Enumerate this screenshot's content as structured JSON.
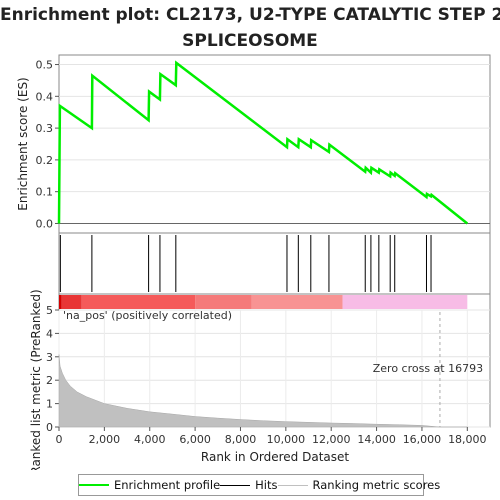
{
  "title_lines": [
    "Enrichment plot: CL2173, U2-TYPE CATALYTIC STEP 2",
    "SPLICEOSOME"
  ],
  "colors": {
    "es_line": "#00ee00",
    "hits": "#000000",
    "ranking": "#c0c0c0",
    "pos_label": "#e04040",
    "zero_line": "#aaaaaa"
  },
  "chart_data": [
    {
      "type": "line",
      "name": "enrichment_profile",
      "ylabel": "Enrichment score (ES)",
      "ylim": [
        -0.03,
        0.53
      ],
      "yticks": [
        0.0,
        0.1,
        0.2,
        0.3,
        0.4,
        0.5
      ],
      "xlim": [
        0,
        19000
      ],
      "points": [
        [
          0,
          0.0
        ],
        [
          40,
          0.37
        ],
        [
          1450,
          0.3
        ],
        [
          1470,
          0.465
        ],
        [
          3950,
          0.325
        ],
        [
          3970,
          0.415
        ],
        [
          4450,
          0.39
        ],
        [
          4470,
          0.47
        ],
        [
          5150,
          0.435
        ],
        [
          5170,
          0.505
        ],
        [
          10050,
          0.24
        ],
        [
          10070,
          0.265
        ],
        [
          10550,
          0.24
        ],
        [
          10570,
          0.265
        ],
        [
          11100,
          0.24
        ],
        [
          11120,
          0.262
        ],
        [
          11900,
          0.225
        ],
        [
          11920,
          0.248
        ],
        [
          13500,
          0.163
        ],
        [
          13520,
          0.175
        ],
        [
          13750,
          0.16
        ],
        [
          13770,
          0.175
        ],
        [
          14100,
          0.16
        ],
        [
          14120,
          0.17
        ],
        [
          14600,
          0.148
        ],
        [
          14620,
          0.16
        ],
        [
          14800,
          0.15
        ],
        [
          14820,
          0.158
        ],
        [
          16200,
          0.083
        ],
        [
          16220,
          0.093
        ],
        [
          16400,
          0.085
        ],
        [
          16420,
          0.09
        ],
        [
          18000,
          0.0
        ]
      ]
    },
    {
      "type": "hits",
      "name": "hits",
      "positions": [
        60,
        1450,
        3950,
        4450,
        5150,
        10050,
        10550,
        11100,
        11900,
        13500,
        13750,
        14100,
        14600,
        14800,
        16200,
        16400
      ]
    },
    {
      "type": "area",
      "name": "ranking_metric",
      "xlabel": "Rank in Ordered Dataset",
      "ylabel": "Ranked list metric (PreRanked)",
      "ylim": [
        0,
        5
      ],
      "yticks": [
        0,
        1,
        2,
        3,
        4,
        5
      ],
      "xticks": [
        0,
        2000,
        4000,
        6000,
        8000,
        10000,
        12000,
        14000,
        16000,
        18000
      ],
      "xtick_labels": [
        "0",
        "2,000",
        "4,000",
        "6,000",
        "8,000",
        "10,000",
        "12,000",
        "14,000",
        "16,000",
        "18,000"
      ],
      "points": [
        [
          0,
          3.1
        ],
        [
          50,
          2.6
        ],
        [
          150,
          2.3
        ],
        [
          300,
          2.0
        ],
        [
          500,
          1.75
        ],
        [
          800,
          1.5
        ],
        [
          1200,
          1.3
        ],
        [
          1600,
          1.15
        ],
        [
          2000,
          1.0
        ],
        [
          3000,
          0.8
        ],
        [
          4000,
          0.65
        ],
        [
          5000,
          0.55
        ],
        [
          6000,
          0.45
        ],
        [
          7000,
          0.38
        ],
        [
          8000,
          0.32
        ],
        [
          9000,
          0.27
        ],
        [
          10000,
          0.23
        ],
        [
          11000,
          0.2
        ],
        [
          12000,
          0.17
        ],
        [
          13000,
          0.15
        ],
        [
          14000,
          0.12
        ],
        [
          15000,
          0.1
        ],
        [
          16000,
          0.07
        ],
        [
          16793,
          0.0
        ],
        [
          18000,
          0.0
        ]
      ],
      "zero_cross": 16793,
      "annotation": "Zero cross at 16793",
      "pos_label": "'na_pos' (positively correlated)"
    },
    {
      "type": "heatmap",
      "name": "rank_color_bar",
      "segments": [
        {
          "from": 0,
          "to": 120,
          "color": "#d40000"
        },
        {
          "from": 120,
          "to": 1000,
          "color": "#e83535"
        },
        {
          "from": 1000,
          "to": 6000,
          "color": "#f55a5a"
        },
        {
          "from": 6000,
          "to": 8500,
          "color": "#f57a7a"
        },
        {
          "from": 8500,
          "to": 12500,
          "color": "#f89393"
        },
        {
          "from": 12500,
          "to": 18000,
          "color": "#f7bce6"
        }
      ]
    }
  ],
  "legend": {
    "items": [
      {
        "label": "Enrichment profile",
        "color": "#00ee00",
        "width": 2
      },
      {
        "label": "Hits",
        "color": "#000000",
        "width": 1
      },
      {
        "label": "Ranking metric scores",
        "color": "#c0c0c0",
        "width": 1
      }
    ]
  }
}
